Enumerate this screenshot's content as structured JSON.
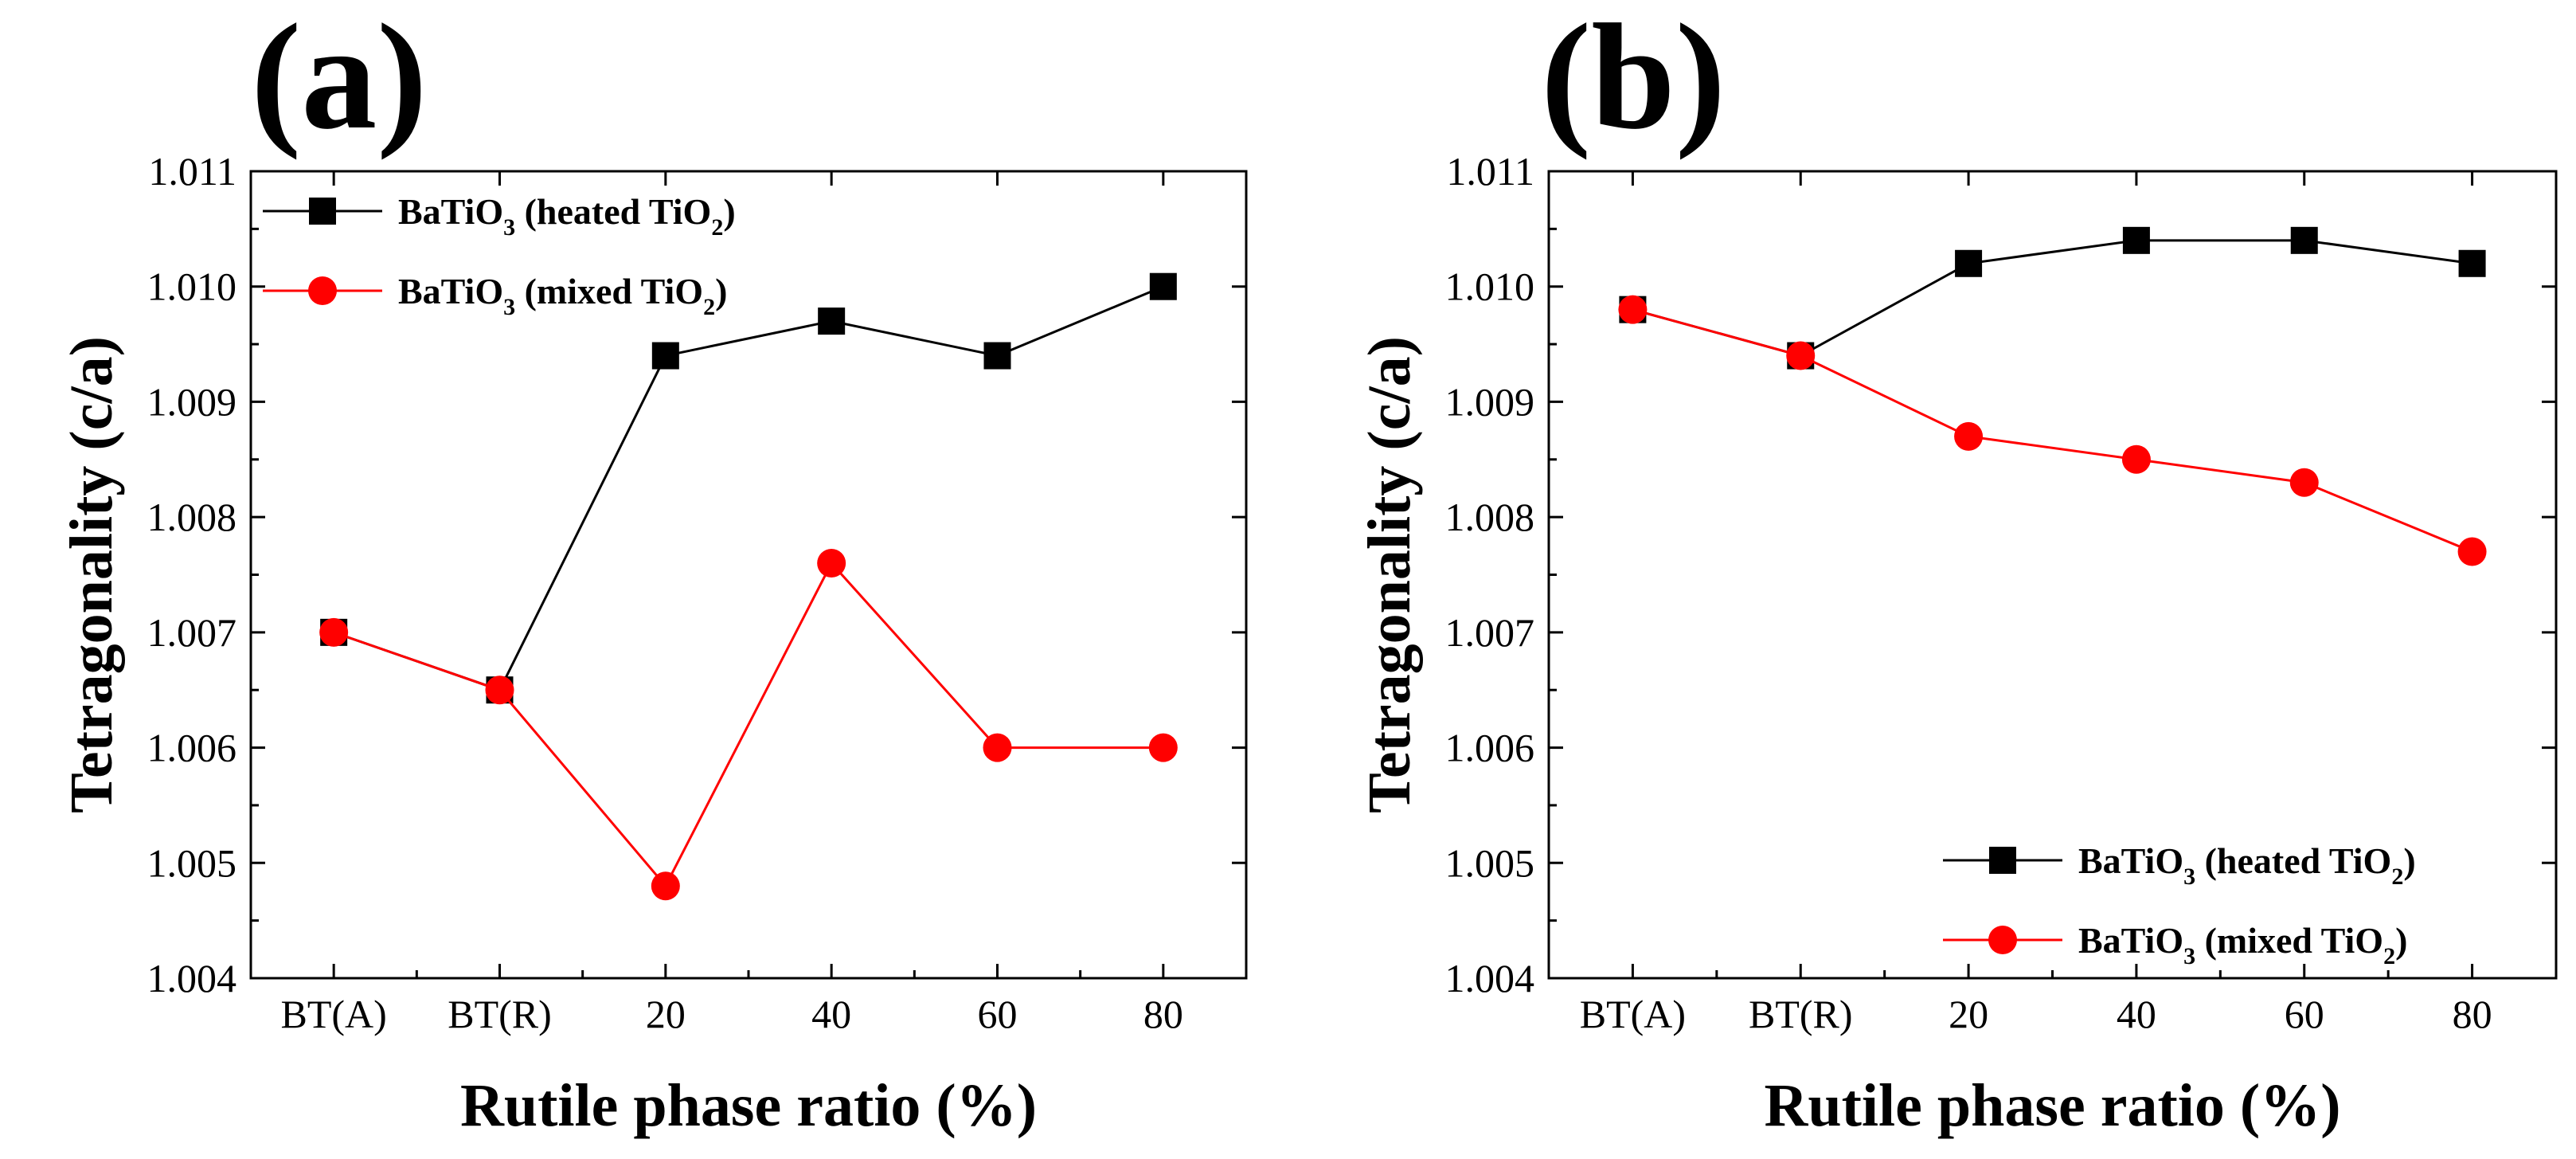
{
  "chart_data": [
    {
      "type": "line",
      "panel_label": "(a)",
      "xlabel": "Rutile phase ratio (%)",
      "ylabel": "Tetragonality (c/a)",
      "categories": [
        "BT(A)",
        "BT(R)",
        "20",
        "40",
        "60",
        "80"
      ],
      "ylim": [
        1.004,
        1.011
      ],
      "yticks": [
        "1.004",
        "1.005",
        "1.006",
        "1.007",
        "1.008",
        "1.009",
        "1.010",
        "1.011"
      ],
      "legend_position": "top-left",
      "series": [
        {
          "name": "BaTiO3 (heated TiO2)",
          "label_main": "BaTiO",
          "label_sub1": "3",
          "label_mid": " (heated TiO",
          "label_sub2": "2",
          "label_end": ")",
          "color": "#000000",
          "marker": "square",
          "values": [
            1.007,
            1.0065,
            1.0094,
            1.0097,
            1.0094,
            1.01
          ]
        },
        {
          "name": "BaTiO3 (mixed TiO2)",
          "label_main": "BaTiO",
          "label_sub1": "3",
          "label_mid": " (mixed TiO",
          "label_sub2": "2",
          "label_end": ")",
          "color": "#ff0000",
          "marker": "circle",
          "values": [
            1.007,
            1.0065,
            1.0048,
            1.0076,
            1.006,
            1.006
          ]
        }
      ]
    },
    {
      "type": "line",
      "panel_label": "(b)",
      "xlabel": "Rutile phase ratio (%)",
      "ylabel": "Tetragonality (c/a)",
      "categories": [
        "BT(A)",
        "BT(R)",
        "20",
        "40",
        "60",
        "80"
      ],
      "ylim": [
        1.004,
        1.011
      ],
      "yticks": [
        "1.004",
        "1.005",
        "1.006",
        "1.007",
        "1.008",
        "1.009",
        "1.010",
        "1.011"
      ],
      "legend_position": "bottom-right",
      "series": [
        {
          "name": "BaTiO3 (heated TiO2)",
          "label_main": "BaTiO",
          "label_sub1": "3",
          "label_mid": " (heated TiO",
          "label_sub2": "2",
          "label_end": ")",
          "color": "#000000",
          "marker": "square",
          "values": [
            1.0098,
            1.0094,
            1.0102,
            1.0104,
            1.0104,
            1.0102
          ]
        },
        {
          "name": "BaTiO3 (mixed TiO2)",
          "label_main": "BaTiO",
          "label_sub1": "3",
          "label_mid": " (mixed TiO",
          "label_sub2": "2",
          "label_end": ")",
          "color": "#ff0000",
          "marker": "circle",
          "values": [
            1.0098,
            1.0094,
            1.0087,
            1.0085,
            1.0083,
            1.0077
          ]
        }
      ]
    }
  ]
}
